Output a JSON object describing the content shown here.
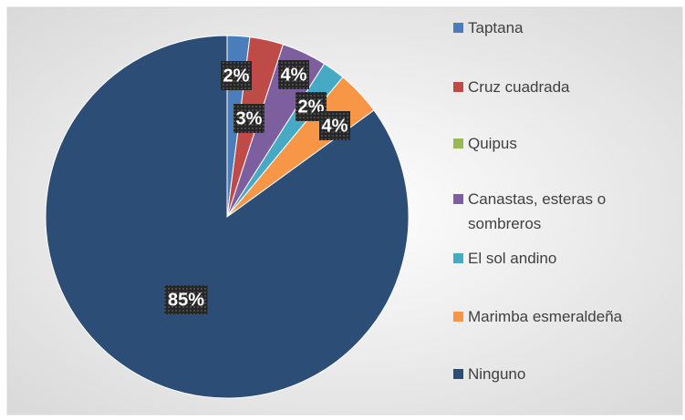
{
  "chart_data": {
    "type": "pie",
    "categories": [
      "Taptana",
      "Cruz cuadrada",
      "Quipus",
      "Canastas, esteras o sombreros",
      "El sol andino",
      "Marimba esmeraldeña",
      "Ninguno"
    ],
    "values": [
      2,
      3,
      0,
      4,
      2,
      4,
      85
    ],
    "value_labels": [
      "2%",
      "3%",
      null,
      "4%",
      "2%",
      "4%",
      "85%"
    ],
    "colors": [
      "#4a7ebb",
      "#be4b48",
      "#98b954",
      "#7d5fa0",
      "#46aac5",
      "#f79646",
      "#2c4d75"
    ],
    "legend": "right"
  }
}
